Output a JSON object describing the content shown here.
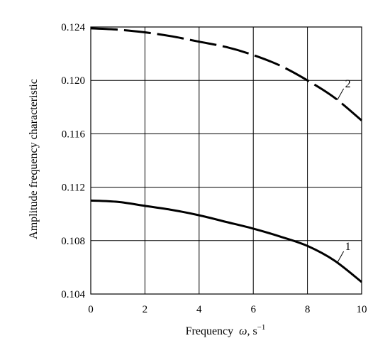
{
  "chart_data": {
    "type": "line",
    "title": "",
    "xlabel": "Frequency",
    "xlabel_symbol": "ω",
    "xlabel_unit": ", s",
    "xlabel_unit_exp": "−1",
    "ylabel": "Amplitude frequency characteristic",
    "xlim": [
      0,
      10
    ],
    "ylim": [
      0.104,
      0.124
    ],
    "x_ticks": [
      0,
      2,
      4,
      6,
      8,
      10
    ],
    "x_tick_labels": [
      "0",
      "2",
      "4",
      "6",
      "8",
      "10"
    ],
    "y_ticks": [
      0.104,
      0.108,
      0.112,
      0.116,
      0.12,
      0.124
    ],
    "y_tick_labels": [
      "0.104",
      "0.108",
      "0.112",
      "0.116",
      "0.120",
      "0.124"
    ],
    "grid": true,
    "series": [
      {
        "name": "1",
        "style": "solid",
        "x": [
          0,
          1,
          2,
          3,
          4,
          5,
          6,
          7,
          8,
          9,
          10
        ],
        "y": [
          0.111,
          0.1109,
          0.1106,
          0.1103,
          0.1099,
          0.1094,
          0.1089,
          0.1083,
          0.1076,
          0.1065,
          0.1049
        ]
      },
      {
        "name": "2",
        "style": "dashed",
        "x": [
          0,
          1,
          2,
          3,
          4,
          5,
          6,
          7,
          8,
          9,
          10
        ],
        "y": [
          0.1239,
          0.1238,
          0.1236,
          0.1233,
          0.1229,
          0.1225,
          0.1219,
          0.1211,
          0.12,
          0.1187,
          0.117
        ]
      }
    ]
  }
}
